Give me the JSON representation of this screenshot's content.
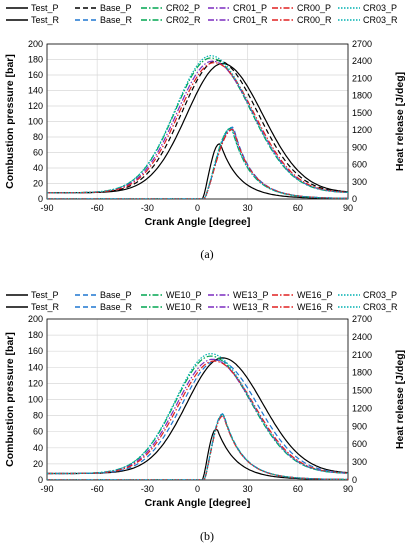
{
  "chart_data": [
    {
      "type": "line",
      "caption": "(a)",
      "xlabel": "Crank Angle [degree]",
      "ylabel": "Combustion pressure [bar]",
      "y2label": "Heat release [J/deg]",
      "xlim": [
        -90,
        90
      ],
      "xticks": [
        -90,
        -60,
        -30,
        0,
        30,
        60,
        90
      ],
      "ylim": [
        0,
        200
      ],
      "yticks": [
        0,
        20,
        40,
        60,
        80,
        100,
        120,
        140,
        160,
        180,
        200
      ],
      "y2lim": [
        0,
        2700
      ],
      "y2ticks": [
        0,
        300,
        600,
        900,
        1200,
        1500,
        1800,
        2100,
        2400,
        2700
      ],
      "grid": true,
      "legend_position": "top",
      "series": [
        {
          "name": "Test_P",
          "color": "#000000",
          "dash": "solid",
          "axis": "left",
          "peak_x": 15,
          "peak_y": 173
        },
        {
          "name": "Base_P",
          "color": "#000000",
          "dash": "dash",
          "axis": "left",
          "peak_x": 12,
          "peak_y": 177
        },
        {
          "name": "CR02_P",
          "color": "#00a550",
          "dash": "dashdot",
          "axis": "left",
          "peak_x": 8,
          "peak_y": 180
        },
        {
          "name": "CR01_P",
          "color": "#7b2cbf",
          "dash": "dashdot",
          "axis": "left",
          "peak_x": 9,
          "peak_y": 176
        },
        {
          "name": "CR00_P",
          "color": "#e02020",
          "dash": "dashdot",
          "axis": "left",
          "peak_x": 10,
          "peak_y": 174
        },
        {
          "name": "CR03_P",
          "color": "#00b0b0",
          "dash": "dot",
          "axis": "left",
          "peak_x": 8,
          "peak_y": 183
        },
        {
          "name": "Test_R",
          "color": "#000000",
          "dash": "solid",
          "axis": "right",
          "start_x": 3,
          "peak_x": 13,
          "peak_y": 960
        },
        {
          "name": "Base_R",
          "color": "#1f77d0",
          "dash": "dash",
          "axis": "right",
          "start_x": 4,
          "peak_x": 21,
          "peak_y": 1250
        },
        {
          "name": "CR02_R",
          "color": "#00a550",
          "dash": "dashdot",
          "axis": "right",
          "start_x": 4,
          "peak_x": 20,
          "peak_y": 1230
        },
        {
          "name": "CR01_R",
          "color": "#7b2cbf",
          "dash": "dashdot",
          "axis": "right",
          "start_x": 4,
          "peak_x": 21,
          "peak_y": 1220
        },
        {
          "name": "CR00_R",
          "color": "#e02020",
          "dash": "dashdot",
          "axis": "right",
          "start_x": 4,
          "peak_x": 21,
          "peak_y": 1210
        },
        {
          "name": "CR03_R",
          "color": "#00b0b0",
          "dash": "dot",
          "axis": "right",
          "start_x": 4,
          "peak_x": 20,
          "peak_y": 1240
        }
      ]
    },
    {
      "type": "line",
      "caption": "(b)",
      "xlabel": "Crank Angle [degree]",
      "ylabel": "Combustion pressure [bar]",
      "y2label": "Heat release [J/deg]",
      "xlim": [
        -90,
        90
      ],
      "xticks": [
        -90,
        -60,
        -30,
        0,
        30,
        60,
        90
      ],
      "ylim": [
        0,
        200
      ],
      "yticks": [
        0,
        20,
        40,
        60,
        80,
        100,
        120,
        140,
        160,
        180,
        200
      ],
      "y2lim": [
        0,
        2700
      ],
      "y2ticks": [
        0,
        300,
        600,
        900,
        1200,
        1500,
        1800,
        2100,
        2400,
        2700
      ],
      "grid": true,
      "legend_position": "top",
      "series": [
        {
          "name": "Test_P",
          "color": "#000000",
          "dash": "solid",
          "axis": "left",
          "peak_x": 15,
          "peak_y": 150
        },
        {
          "name": "Base_P",
          "color": "#1f77d0",
          "dash": "dash",
          "axis": "left",
          "peak_x": 12,
          "peak_y": 147
        },
        {
          "name": "WE10_P",
          "color": "#00a550",
          "dash": "dashdot",
          "axis": "left",
          "peak_x": 8,
          "peak_y": 152
        },
        {
          "name": "WE13_P",
          "color": "#7b2cbf",
          "dash": "dashdot",
          "axis": "left",
          "peak_x": 9,
          "peak_y": 148
        },
        {
          "name": "WE16_P",
          "color": "#e02020",
          "dash": "dashdot",
          "axis": "left",
          "peak_x": 10,
          "peak_y": 146
        },
        {
          "name": "CR03_P",
          "color": "#00b0b0",
          "dash": "dot",
          "axis": "left",
          "peak_x": 8,
          "peak_y": 155
        },
        {
          "name": "Test_R",
          "color": "#000000",
          "dash": "solid",
          "axis": "right",
          "start_x": 3,
          "peak_x": 11,
          "peak_y": 850
        },
        {
          "name": "Base_R",
          "color": "#1f77d0",
          "dash": "dash",
          "axis": "right",
          "start_x": 4,
          "peak_x": 15,
          "peak_y": 1110
        },
        {
          "name": "WE10_R",
          "color": "#00a550",
          "dash": "dashdot",
          "axis": "right",
          "start_x": 4,
          "peak_x": 15,
          "peak_y": 1090
        },
        {
          "name": "WE13_R",
          "color": "#7b2cbf",
          "dash": "dashdot",
          "axis": "right",
          "start_x": 4,
          "peak_x": 15,
          "peak_y": 1080
        },
        {
          "name": "WE16_R",
          "color": "#e02020",
          "dash": "dashdot",
          "axis": "right",
          "start_x": 4,
          "peak_x": 15,
          "peak_y": 1070
        },
        {
          "name": "CR03_R",
          "color": "#00b0b0",
          "dash": "dot",
          "axis": "right",
          "start_x": 4,
          "peak_x": 15,
          "peak_y": 1100
        }
      ]
    }
  ]
}
